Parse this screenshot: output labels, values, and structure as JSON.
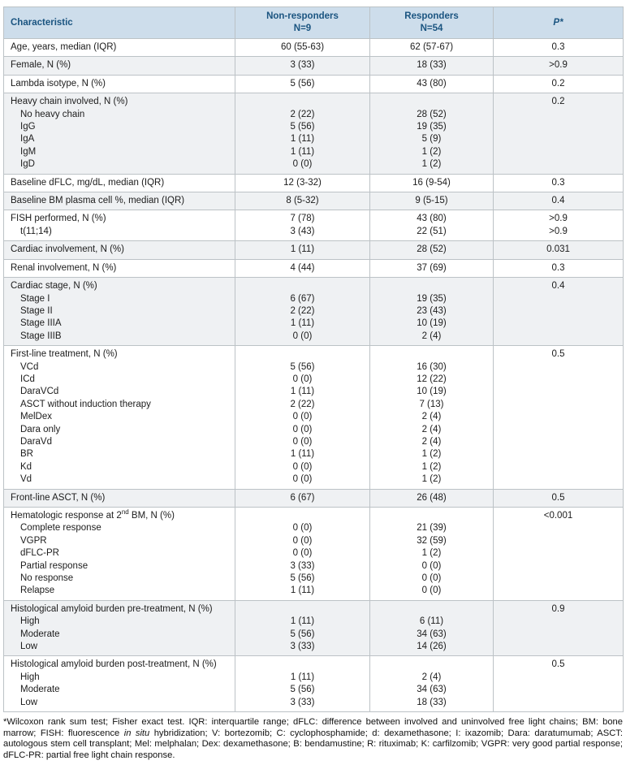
{
  "colors": {
    "header_bg": "#cdddeb",
    "header_text": "#1a5480",
    "row_shade": "#eff1f3",
    "border": "#bcc2c6"
  },
  "table": {
    "headers": [
      [
        "Characteristic"
      ],
      [
        "Non-responders",
        "N=9"
      ],
      [
        "Responders",
        "N=54"
      ],
      [
        "P*"
      ]
    ],
    "groups": [
      {
        "shaded": false,
        "rows": [
          {
            "label": "Age, years, median (IQR)",
            "nr": "60 (55-63)",
            "r": "62 (57-67)",
            "p": "0.3"
          }
        ]
      },
      {
        "shaded": true,
        "rows": [
          {
            "label": "Female, N (%)",
            "nr": "3 (33)",
            "r": "18 (33)",
            "p": ">0.9"
          }
        ]
      },
      {
        "shaded": false,
        "rows": [
          {
            "label": "Lambda isotype, N (%)",
            "nr": "5 (56)",
            "r": "43 (80)",
            "p": "0.2"
          }
        ]
      },
      {
        "shaded": true,
        "rows": [
          {
            "label": "Heavy chain involved, N (%)",
            "nr": "",
            "r": "",
            "p": "0.2"
          },
          {
            "label": "No heavy chain",
            "indent": true,
            "nr": "2 (22)",
            "r": "28 (52)",
            "p": ""
          },
          {
            "label": "IgG",
            "indent": true,
            "nr": "5 (56)",
            "r": "19 (35)",
            "p": ""
          },
          {
            "label": "IgA",
            "indent": true,
            "nr": "1 (11)",
            "r": "5 (9)",
            "p": ""
          },
          {
            "label": "IgM",
            "indent": true,
            "nr": "1 (11)",
            "r": "1 (2)",
            "p": ""
          },
          {
            "label": "IgD",
            "indent": true,
            "nr": "0 (0)",
            "r": "1 (2)",
            "p": ""
          }
        ]
      },
      {
        "shaded": false,
        "rows": [
          {
            "label": "Baseline dFLC, mg/dL, median (IQR)",
            "nr": "12 (3-32)",
            "r": "16 (9-54)",
            "p": "0.3"
          }
        ]
      },
      {
        "shaded": true,
        "rows": [
          {
            "label": "Baseline BM plasma cell %, median (IQR)",
            "nr": "8 (5-32)",
            "r": "9 (5-15)",
            "p": "0.4"
          }
        ]
      },
      {
        "shaded": false,
        "rows": [
          {
            "label": "FISH performed, N (%)",
            "nr": "7 (78)",
            "r": "43 (80)",
            "p": ">0.9"
          },
          {
            "label": "t(11;14)",
            "indent": true,
            "nr": "3 (43)",
            "r": "22 (51)",
            "p": ">0.9"
          }
        ]
      },
      {
        "shaded": true,
        "rows": [
          {
            "label": "Cardiac involvement, N (%)",
            "nr": "1 (11)",
            "r": "28 (52)",
            "p": "0.031"
          }
        ]
      },
      {
        "shaded": false,
        "rows": [
          {
            "label": "Renal involvement, N (%)",
            "nr": "4 (44)",
            "r": "37 (69)",
            "p": "0.3"
          }
        ]
      },
      {
        "shaded": true,
        "rows": [
          {
            "label": "Cardiac stage, N (%)",
            "nr": "",
            "r": "",
            "p": "0.4"
          },
          {
            "label": "Stage I",
            "indent": true,
            "nr": "6 (67)",
            "r": "19 (35)",
            "p": ""
          },
          {
            "label": "Stage II",
            "indent": true,
            "nr": "2 (22)",
            "r": "23 (43)",
            "p": ""
          },
          {
            "label": "Stage IIIA",
            "indent": true,
            "nr": "1 (11)",
            "r": "10 (19)",
            "p": ""
          },
          {
            "label": "Stage IIIB",
            "indent": true,
            "nr": "0 (0)",
            "r": "2 (4)",
            "p": ""
          }
        ]
      },
      {
        "shaded": false,
        "rows": [
          {
            "label": "First-line treatment, N (%)",
            "nr": "",
            "r": "",
            "p": "0.5"
          },
          {
            "label": "VCd",
            "indent": true,
            "nr": "5 (56)",
            "r": "16 (30)",
            "p": ""
          },
          {
            "label": "ICd",
            "indent": true,
            "nr": "0 (0)",
            "r": "12 (22)",
            "p": ""
          },
          {
            "label": "DaraVCd",
            "indent": true,
            "nr": "1 (11)",
            "r": "10 (19)",
            "p": ""
          },
          {
            "label": "ASCT without induction therapy",
            "indent": true,
            "nr": "2 (22)",
            "r": "7 (13)",
            "p": ""
          },
          {
            "label": "MelDex",
            "indent": true,
            "nr": "0 (0)",
            "r": "2 (4)",
            "p": ""
          },
          {
            "label": "Dara only",
            "indent": true,
            "nr": "0 (0)",
            "r": "2 (4)",
            "p": ""
          },
          {
            "label": "DaraVd",
            "indent": true,
            "nr": "0 (0)",
            "r": "2 (4)",
            "p": ""
          },
          {
            "label": "BR",
            "indent": true,
            "nr": "1 (11)",
            "r": "1 (2)",
            "p": ""
          },
          {
            "label": "Kd",
            "indent": true,
            "nr": "0 (0)",
            "r": "1 (2)",
            "p": ""
          },
          {
            "label": "Vd",
            "indent": true,
            "nr": "0 (0)",
            "r": "1 (2)",
            "p": ""
          }
        ]
      },
      {
        "shaded": true,
        "rows": [
          {
            "label": "Front-line ASCT, N (%)",
            "nr": "6 (67)",
            "r": "26 (48)",
            "p": "0.5"
          }
        ]
      },
      {
        "shaded": false,
        "rows": [
          {
            "label": "Hematologic response at 2^{nd} BM, N (%)",
            "nr": "",
            "r": "",
            "p": "<0.001"
          },
          {
            "label": "Complete response",
            "indent": true,
            "nr": "0 (0)",
            "r": "21 (39)",
            "p": ""
          },
          {
            "label": "VGPR",
            "indent": true,
            "nr": "0 (0)",
            "r": "32 (59)",
            "p": ""
          },
          {
            "label": "dFLC-PR",
            "indent": true,
            "nr": "0 (0)",
            "r": "1 (2)",
            "p": ""
          },
          {
            "label": "Partial response",
            "indent": true,
            "nr": "3 (33)",
            "r": "0 (0)",
            "p": ""
          },
          {
            "label": "No response",
            "indent": true,
            "nr": "5 (56)",
            "r": "0 (0)",
            "p": ""
          },
          {
            "label": "Relapse",
            "indent": true,
            "nr": "1 (11)",
            "r": "0 (0)",
            "p": ""
          }
        ]
      },
      {
        "shaded": true,
        "rows": [
          {
            "label": "Histological amyloid burden pre-treatment, N (%)",
            "nr": "",
            "r": "",
            "p": "0.9"
          },
          {
            "label": "High",
            "indent": true,
            "nr": "1 (11)",
            "r": "6 (11)",
            "p": ""
          },
          {
            "label": "Moderate",
            "indent": true,
            "nr": "5 (56)",
            "r": "34 (63)",
            "p": ""
          },
          {
            "label": "Low",
            "indent": true,
            "nr": "3 (33)",
            "r": "14 (26)",
            "p": ""
          }
        ]
      },
      {
        "shaded": false,
        "rows": [
          {
            "label": "Histological amyloid burden post-treatment, N (%)",
            "nr": "",
            "r": "",
            "p": "0.5"
          },
          {
            "label": "High",
            "indent": true,
            "nr": "1 (11)",
            "r": "2 (4)",
            "p": ""
          },
          {
            "label": "Moderate",
            "indent": true,
            "nr": "5 (56)",
            "r": "34 (63)",
            "p": ""
          },
          {
            "label": "Low",
            "indent": true,
            "nr": "3 (33)",
            "r": "18 (33)",
            "p": ""
          }
        ]
      }
    ]
  },
  "footnote": {
    "parts": [
      "*Wilcoxon rank sum test; Fisher exact test. IQR: interquartile range; dFLC: difference between involved and uninvolved free light chains; BM: bone marrow; FISH: fluorescence ",
      "in situ",
      " hybridization; V: bortezomib; C: cyclophosphamide; d: dexamethasone; I: ixazomib; Dara: daratumumab; ASCT: autologous stem cell transplant; Mel: melphalan; Dex: dexamethasone; B: bendamustine; R: rituximab; K: carfilzomib; VGPR: very good partial response; dFLC-PR: partial free light chain response."
    ]
  }
}
